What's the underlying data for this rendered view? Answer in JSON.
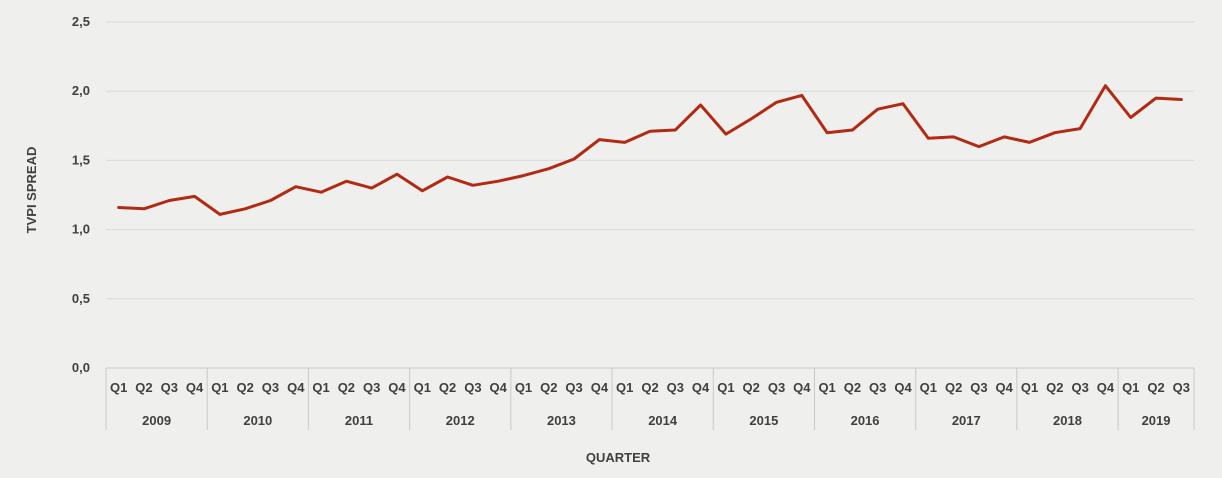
{
  "chart_data": {
    "type": "line",
    "xlabel": "QUARTER",
    "ylabel": "TVPI SPREAD",
    "ylim": [
      0,
      2.5
    ],
    "yticks": [
      "0,0",
      "0,5",
      "1,0",
      "1,5",
      "2,0",
      "2,5"
    ],
    "grid": true,
    "legend": "none",
    "line_color": "#b22a14",
    "years": [
      "2009",
      "2010",
      "2011",
      "2012",
      "2013",
      "2014",
      "2015",
      "2016",
      "2017",
      "2018",
      "2019"
    ],
    "quarters": [
      "Q1",
      "Q2",
      "Q3",
      "Q4"
    ],
    "x": [
      "2009 Q1",
      "2009 Q2",
      "2009 Q3",
      "2009 Q4",
      "2010 Q1",
      "2010 Q2",
      "2010 Q3",
      "2010 Q4",
      "2011 Q1",
      "2011 Q2",
      "2011 Q3",
      "2011 Q4",
      "2012 Q1",
      "2012 Q2",
      "2012 Q3",
      "2012 Q4",
      "2013 Q1",
      "2013 Q2",
      "2013 Q3",
      "2013 Q4",
      "2014 Q1",
      "2014 Q2",
      "2014 Q3",
      "2014 Q4",
      "2015 Q1",
      "2015 Q2",
      "2015 Q3",
      "2015 Q4",
      "2016 Q1",
      "2016 Q2",
      "2016 Q3",
      "2016 Q4",
      "2017 Q1",
      "2017 Q2",
      "2017 Q3",
      "2017 Q4",
      "2018 Q1",
      "2018 Q2",
      "2018 Q3",
      "2018 Q4",
      "2019 Q1",
      "2019 Q2",
      "2019 Q3"
    ],
    "values": [
      1.16,
      1.15,
      1.21,
      1.24,
      1.11,
      1.15,
      1.21,
      1.31,
      1.27,
      1.35,
      1.3,
      1.4,
      1.28,
      1.38,
      1.32,
      1.35,
      1.39,
      1.44,
      1.51,
      1.65,
      1.63,
      1.71,
      1.72,
      1.9,
      1.69,
      1.8,
      1.92,
      1.97,
      1.7,
      1.72,
      1.87,
      1.91,
      1.66,
      1.67,
      1.6,
      1.67,
      1.63,
      1.7,
      1.73,
      2.04,
      1.81,
      1.95,
      1.94
    ]
  }
}
